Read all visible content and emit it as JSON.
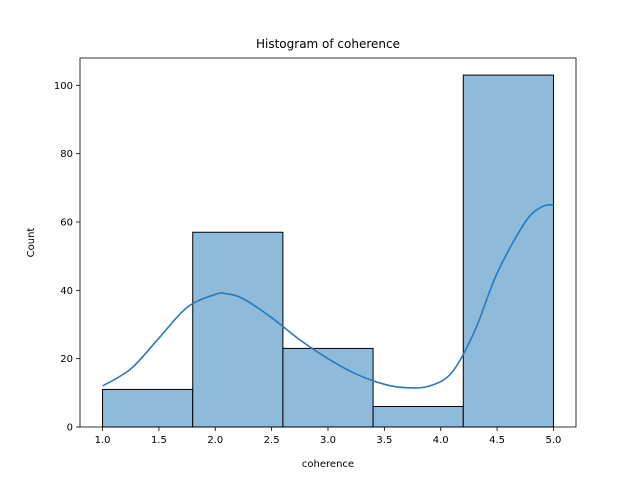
{
  "chart_data": {
    "type": "bar",
    "title": "Histogram of coherence",
    "xlabel": "coherence",
    "ylabel": "Count",
    "xlim": [
      0.8,
      5.2
    ],
    "ylim": [
      0,
      108
    ],
    "xticks": [
      1.0,
      1.5,
      2.0,
      2.5,
      3.0,
      3.5,
      4.0,
      4.5,
      5.0
    ],
    "xtick_labels": [
      "1.0",
      "1.5",
      "2.0",
      "2.5",
      "3.0",
      "3.5",
      "4.0",
      "4.5",
      "5.0"
    ],
    "yticks": [
      0,
      20,
      40,
      60,
      80,
      100
    ],
    "ytick_labels": [
      "0",
      "20",
      "40",
      "60",
      "80",
      "100"
    ],
    "bins": [
      {
        "x0": 1.0,
        "x1": 1.8,
        "count": 11
      },
      {
        "x0": 1.8,
        "x1": 2.6,
        "count": 57
      },
      {
        "x0": 2.6,
        "x1": 3.4,
        "count": 23
      },
      {
        "x0": 3.4,
        "x1": 4.2,
        "count": 6
      },
      {
        "x0": 4.2,
        "x1": 5.0,
        "count": 103
      }
    ],
    "kde": {
      "x": [
        1.0,
        1.25,
        1.5,
        1.75,
        2.0,
        2.1,
        2.25,
        2.5,
        2.75,
        3.0,
        3.25,
        3.5,
        3.7,
        3.9,
        4.1,
        4.3,
        4.5,
        4.75,
        4.9,
        5.0
      ],
      "y": [
        12,
        17,
        26,
        35,
        38.8,
        39,
        37.5,
        32,
        25.5,
        20,
        15.5,
        12.5,
        11.5,
        12,
        16,
        28,
        45,
        60,
        64.5,
        65
      ]
    },
    "bar_color": "#8fbbdb",
    "bar_edge_color": "#000000",
    "line_color": "#2a7ab9",
    "grid": false
  }
}
